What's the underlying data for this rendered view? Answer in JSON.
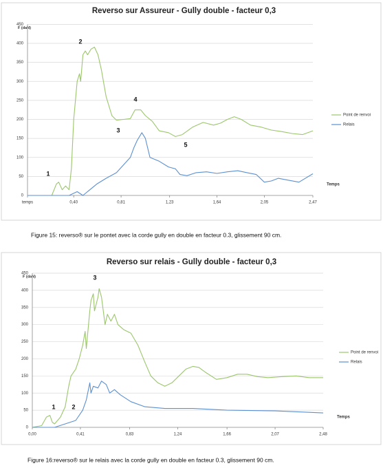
{
  "chart_data": [
    {
      "type": "line",
      "title": "Reverso sur Assureur - Gully double -  facteur 0,3",
      "y_label": "F (daN)",
      "x_label": "Temps",
      "xlim": [
        0,
        2.47
      ],
      "ylim": [
        0,
        450
      ],
      "xticks": [
        {
          "value": 0,
          "label": "temps"
        },
        {
          "value": 0.4,
          "label": "0,40"
        },
        {
          "value": 0.81,
          "label": "0,81"
        },
        {
          "value": 1.23,
          "label": "1,23"
        },
        {
          "value": 1.64,
          "label": "1,64"
        },
        {
          "value": 2.05,
          "label": "2,05"
        },
        {
          "value": 2.47,
          "label": "2,47"
        }
      ],
      "yticks": [
        0,
        50,
        100,
        150,
        200,
        250,
        300,
        350,
        400,
        450
      ],
      "grid": true,
      "legend": "right",
      "annotations": [
        "1",
        "2",
        "3",
        "4",
        "5"
      ],
      "series": [
        {
          "name": "Point de renvoi",
          "color": "#9bc66b",
          "x": [
            0,
            0.21,
            0.25,
            0.27,
            0.3,
            0.33,
            0.36,
            0.38,
            0.4,
            0.43,
            0.45,
            0.46,
            0.48,
            0.5,
            0.52,
            0.55,
            0.58,
            0.61,
            0.64,
            0.68,
            0.73,
            0.77,
            0.83,
            0.89,
            0.93,
            0.98,
            1.02,
            1.08,
            1.14,
            1.22,
            1.28,
            1.34,
            1.43,
            1.52,
            1.61,
            1.67,
            1.73,
            1.79,
            1.85,
            1.93,
            2.02,
            2.11,
            2.2,
            2.29,
            2.38,
            2.47
          ],
          "values": [
            0,
            0,
            30,
            35,
            15,
            25,
            15,
            70,
            200,
            300,
            320,
            300,
            370,
            380,
            370,
            385,
            390,
            370,
            330,
            260,
            210,
            198,
            200,
            202,
            225,
            225,
            210,
            195,
            170,
            165,
            155,
            160,
            180,
            192,
            185,
            190,
            200,
            207,
            200,
            185,
            180,
            172,
            168,
            163,
            160,
            170
          ]
        },
        {
          "name": "Relais",
          "color": "#5b8fd0",
          "x": [
            0,
            0.36,
            0.43,
            0.48,
            0.6,
            0.68,
            0.77,
            0.83,
            0.89,
            0.92,
            0.95,
            0.99,
            1.02,
            1.06,
            1.1,
            1.14,
            1.22,
            1.28,
            1.32,
            1.38,
            1.46,
            1.55,
            1.64,
            1.73,
            1.82,
            1.9,
            1.98,
            2.05,
            2.11,
            2.17,
            2.26,
            2.35,
            2.47
          ],
          "values": [
            0,
            0,
            10,
            0,
            30,
            45,
            60,
            80,
            100,
            125,
            145,
            165,
            150,
            100,
            95,
            90,
            75,
            70,
            55,
            52,
            60,
            62,
            58,
            62,
            65,
            60,
            55,
            35,
            38,
            45,
            40,
            35,
            57
          ]
        }
      ]
    },
    {
      "type": "line",
      "title": "Reverso sur relais - Gully double - facteur 0,3",
      "y_label": "F (daN)",
      "x_label": "Temps",
      "xlim": [
        0,
        2.48
      ],
      "ylim": [
        0,
        450
      ],
      "xticks": [
        {
          "value": 0,
          "label": "0,00"
        },
        {
          "value": 0.41,
          "label": "0,41"
        },
        {
          "value": 0.83,
          "label": "0,83"
        },
        {
          "value": 1.24,
          "label": "1,24"
        },
        {
          "value": 1.66,
          "label": "1,66"
        },
        {
          "value": 2.07,
          "label": "2,07"
        },
        {
          "value": 2.48,
          "label": "2,48"
        }
      ],
      "yticks": [
        0,
        50,
        100,
        150,
        200,
        250,
        300,
        350,
        400,
        450
      ],
      "grid": true,
      "legend": "right",
      "annotations": [
        "1",
        "2",
        "3"
      ],
      "series": [
        {
          "name": "Point de renvoi",
          "color": "#9bc66b",
          "x": [
            0,
            0.08,
            0.12,
            0.15,
            0.17,
            0.19,
            0.24,
            0.28,
            0.31,
            0.33,
            0.37,
            0.4,
            0.43,
            0.45,
            0.46,
            0.49,
            0.5,
            0.52,
            0.53,
            0.56,
            0.57,
            0.59,
            0.62,
            0.64,
            0.67,
            0.7,
            0.73,
            0.78,
            0.84,
            0.9,
            0.96,
            1.01,
            1.07,
            1.13,
            1.19,
            1.25,
            1.31,
            1.37,
            1.42,
            1.48,
            1.57,
            1.66,
            1.75,
            1.83,
            1.92,
            2.01,
            2.13,
            2.25,
            2.36,
            2.48
          ],
          "values": [
            0,
            5,
            30,
            35,
            15,
            10,
            30,
            60,
            120,
            150,
            170,
            200,
            240,
            280,
            230,
            340,
            370,
            390,
            340,
            380,
            405,
            380,
            300,
            330,
            310,
            330,
            300,
            285,
            275,
            240,
            190,
            150,
            130,
            120,
            130,
            150,
            170,
            178,
            175,
            160,
            140,
            145,
            155,
            155,
            148,
            145,
            148,
            150,
            145,
            145
          ]
        },
        {
          "name": "Relais",
          "color": "#5b8fd0",
          "x": [
            0,
            0.19,
            0.28,
            0.37,
            0.43,
            0.46,
            0.49,
            0.5,
            0.52,
            0.56,
            0.59,
            0.63,
            0.66,
            0.7,
            0.75,
            0.84,
            0.96,
            1.13,
            1.37,
            1.66,
            2.07,
            2.48
          ],
          "values": [
            0,
            0,
            10,
            20,
            50,
            80,
            130,
            100,
            120,
            115,
            135,
            125,
            100,
            110,
            95,
            75,
            60,
            55,
            55,
            50,
            48,
            42
          ]
        }
      ]
    }
  ],
  "captions": [
    "Figure 15: reverso® sur le pontet avec la corde gully en double en facteur 0.3, glissement 90 cm.",
    "Figure 16:reverso® sur le relais avec la corde gully en double en facteur 0.3, glissement 90 cm."
  ]
}
